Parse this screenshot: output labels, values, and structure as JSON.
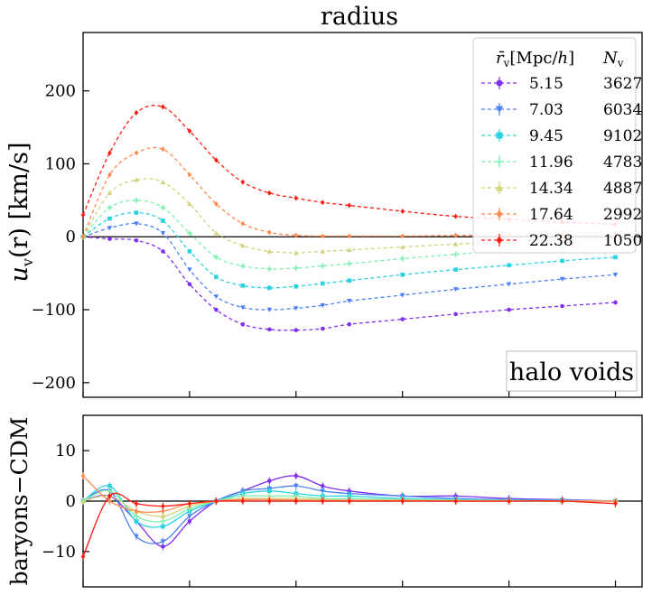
{
  "chart_data": [
    {
      "type": "line",
      "title": "radius",
      "ylabel": "u_v(r) [km/s]",
      "ylabel_parts": [
        "u",
        "v",
        "(r) [km/s]"
      ],
      "xlabel": "",
      "ylim": [
        -220,
        280
      ],
      "yticks": [
        -200,
        -100,
        0,
        100,
        200
      ],
      "ytick_labels": [
        "−200",
        "−100",
        "0",
        "100",
        "200"
      ],
      "xlim": [
        0.0,
        1.05
      ],
      "xticks": [
        0.0,
        0.2,
        0.4,
        0.6,
        0.8,
        1.0
      ],
      "annotation": "halo voids",
      "legend": {
        "placement": "top-right",
        "header_rv": "r̄v[Mpc/h]",
        "header_nv": "Nv",
        "header_rv_parts": [
          "r̄",
          "v",
          "[Mpc/",
          "h",
          "]"
        ],
        "header_nv_parts": [
          "N",
          "v"
        ]
      },
      "series": [
        {
          "name": "5.15",
          "count": "3627",
          "color": "#8030f0",
          "marker": "circle",
          "x": [
            0.0,
            0.05,
            0.1,
            0.15,
            0.2,
            0.25,
            0.3,
            0.35,
            0.4,
            0.45,
            0.5,
            0.6,
            0.7,
            0.8,
            0.9,
            1.0
          ],
          "values": [
            0,
            -3,
            -5,
            -20,
            -65,
            -100,
            -120,
            -127,
            -128,
            -126,
            -120,
            -113,
            -106,
            -100,
            -95,
            -90
          ]
        },
        {
          "name": "7.03",
          "count": "6034",
          "color": "#4d80f0",
          "marker": "triangle-down",
          "x": [
            0.0,
            0.05,
            0.1,
            0.15,
            0.2,
            0.25,
            0.3,
            0.35,
            0.4,
            0.45,
            0.5,
            0.6,
            0.7,
            0.8,
            0.9,
            1.0
          ],
          "values": [
            0,
            12,
            18,
            5,
            -45,
            -82,
            -97,
            -100,
            -98,
            -94,
            -88,
            -80,
            -72,
            -65,
            -58,
            -52
          ]
        },
        {
          "name": "9.45",
          "count": "9102",
          "color": "#2ad2e0",
          "marker": "square",
          "x": [
            0.0,
            0.05,
            0.1,
            0.15,
            0.2,
            0.25,
            0.3,
            0.35,
            0.4,
            0.45,
            0.5,
            0.6,
            0.7,
            0.8,
            0.9,
            1.0
          ],
          "values": [
            0,
            25,
            33,
            22,
            -20,
            -55,
            -67,
            -70,
            -68,
            -64,
            -60,
            -52,
            -45,
            -39,
            -33,
            -28
          ]
        },
        {
          "name": "11.96",
          "count": "4783",
          "color": "#7ff0b0",
          "marker": "plus",
          "x": [
            0.0,
            0.05,
            0.1,
            0.15,
            0.2,
            0.25,
            0.3,
            0.35,
            0.4,
            0.45,
            0.5,
            0.6,
            0.7,
            0.8,
            0.9,
            1.0
          ],
          "values": [
            0,
            40,
            50,
            40,
            5,
            -28,
            -40,
            -44,
            -43,
            -40,
            -37,
            -30,
            -24,
            -19,
            -15,
            -12
          ]
        },
        {
          "name": "14.34",
          "count": "4887",
          "color": "#d2d27a",
          "marker": "triangle-up",
          "x": [
            0.0,
            0.05,
            0.1,
            0.15,
            0.2,
            0.25,
            0.3,
            0.35,
            0.4,
            0.45,
            0.5,
            0.6,
            0.7,
            0.8,
            0.9,
            1.0
          ],
          "values": [
            0,
            60,
            78,
            75,
            45,
            5,
            -12,
            -20,
            -22,
            -20,
            -18,
            -14,
            -10,
            -7,
            -5,
            -3
          ]
        },
        {
          "name": "17.64",
          "count": "2992",
          "color": "#ff8a50",
          "marker": "diamond",
          "x": [
            0.0,
            0.05,
            0.1,
            0.15,
            0.2,
            0.25,
            0.3,
            0.35,
            0.4,
            0.45,
            0.5,
            0.6,
            0.7,
            0.8,
            0.9,
            1.0
          ],
          "values": [
            0,
            85,
            115,
            120,
            85,
            45,
            18,
            6,
            2,
            1,
            1,
            1,
            2,
            2,
            2,
            3
          ]
        },
        {
          "name": "22.38",
          "count": "1050",
          "color": "#ff1a10",
          "marker": "diamond",
          "x": [
            0.0,
            0.05,
            0.1,
            0.15,
            0.2,
            0.25,
            0.3,
            0.35,
            0.4,
            0.45,
            0.5,
            0.6,
            0.7,
            0.8,
            0.9,
            1.0
          ],
          "values": [
            30,
            115,
            170,
            178,
            145,
            105,
            75,
            60,
            53,
            47,
            43,
            35,
            28,
            24,
            20,
            17
          ]
        }
      ]
    },
    {
      "type": "line",
      "ylabel": "baryons−CDM",
      "xlabel": "",
      "ylim": [
        -17,
        17
      ],
      "yticks": [
        -10,
        0,
        10
      ],
      "ytick_labels": [
        "−10",
        "0",
        "10"
      ],
      "xlim": [
        0.0,
        1.05
      ],
      "xticks": [
        0.0,
        0.2,
        0.4,
        0.6,
        0.8,
        1.0
      ],
      "series": [
        {
          "name": "5.15",
          "color": "#8030f0",
          "x": [
            0.0,
            0.05,
            0.1,
            0.15,
            0.2,
            0.25,
            0.3,
            0.35,
            0.4,
            0.45,
            0.5,
            0.6,
            0.7,
            0.8,
            0.9,
            1.0
          ],
          "values": [
            0,
            1,
            -4,
            -9,
            -4,
            0,
            2,
            4,
            5,
            3,
            2,
            1,
            1,
            0.5,
            0.3,
            0
          ]
        },
        {
          "name": "7.03",
          "color": "#4d80f0",
          "x": [
            0.0,
            0.05,
            0.1,
            0.15,
            0.2,
            0.25,
            0.3,
            0.35,
            0.4,
            0.45,
            0.5,
            0.6,
            0.7,
            0.8,
            0.9,
            1.0
          ],
          "values": [
            0,
            2,
            -7,
            -8,
            -3,
            0,
            2,
            2.5,
            3,
            2,
            1.5,
            1,
            0.5,
            0.3,
            0.2,
            0
          ]
        },
        {
          "name": "9.45",
          "color": "#2ad2e0",
          "x": [
            0.0,
            0.05,
            0.1,
            0.15,
            0.2,
            0.25,
            0.3,
            0.35,
            0.4,
            0.45,
            0.5,
            0.6,
            0.7,
            0.8,
            0.9,
            1.0
          ],
          "values": [
            0,
            3,
            -4,
            -5,
            -2,
            0,
            1.5,
            2,
            1.5,
            1,
            1,
            0.5,
            0.3,
            0.2,
            0.1,
            0
          ]
        },
        {
          "name": "11.96",
          "color": "#7ff0b0",
          "x": [
            0.0,
            0.05,
            0.1,
            0.15,
            0.2,
            0.25,
            0.3,
            0.35,
            0.4,
            0.45,
            0.5,
            0.6,
            0.7,
            0.8,
            0.9,
            1.0
          ],
          "values": [
            0,
            2,
            -3,
            -4,
            -1.5,
            0,
            1,
            1,
            1,
            0.5,
            0.5,
            0.3,
            0.2,
            0.1,
            0.1,
            0
          ]
        },
        {
          "name": "14.34",
          "color": "#d2d27a",
          "x": [
            0.0,
            0.05,
            0.1,
            0.15,
            0.2,
            0.25,
            0.3,
            0.35,
            0.4,
            0.45,
            0.5,
            0.6,
            0.7,
            0.8,
            0.9,
            1.0
          ],
          "values": [
            0,
            1,
            -2,
            -3,
            -1,
            0,
            0.5,
            0.5,
            0.5,
            0.3,
            0.2,
            0.2,
            0.1,
            0.1,
            0,
            0
          ]
        },
        {
          "name": "17.64",
          "color": "#ff8a50",
          "x": [
            0.0,
            0.05,
            0.1,
            0.15,
            0.2,
            0.25,
            0.3,
            0.35,
            0.4,
            0.45,
            0.5,
            0.6,
            0.7,
            0.8,
            0.9,
            1.0
          ],
          "values": [
            5,
            0,
            -2,
            -2,
            -0.5,
            0,
            0.3,
            0.3,
            0.2,
            0.1,
            0.1,
            0.1,
            0,
            0,
            0,
            0
          ]
        },
        {
          "name": "22.38",
          "color": "#ff1a10",
          "x": [
            0.0,
            0.05,
            0.1,
            0.15,
            0.2,
            0.25,
            0.3,
            0.35,
            0.4,
            0.45,
            0.5,
            0.6,
            0.7,
            0.8,
            0.9,
            1.0
          ],
          "values": [
            -11,
            1,
            -0.5,
            -1,
            -0.5,
            0,
            0,
            0,
            0,
            0,
            0,
            0,
            0,
            0,
            0,
            -0.5
          ]
        }
      ]
    }
  ]
}
